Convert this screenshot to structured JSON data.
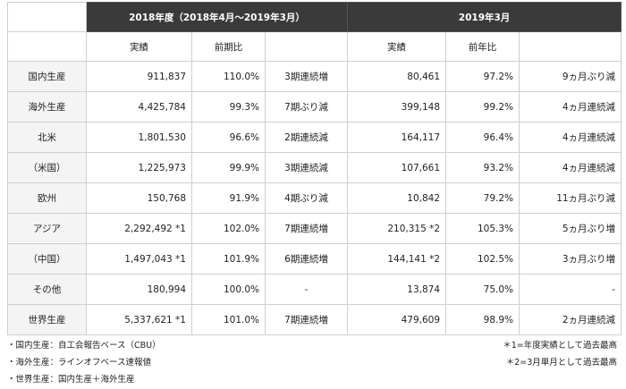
{
  "header": {
    "period1": "2018年度（2018年4月～2019年3月）",
    "period2": "2019年3月"
  },
  "subheader": {
    "c1": "実績",
    "c2": "前期比",
    "c3": "実績",
    "c4": "前年比"
  },
  "rows": [
    {
      "label": "国内生産",
      "v1": "911,837",
      "p1": "110.0%",
      "n1": "3期連続増",
      "v2": "80,461",
      "p2": "97.2%",
      "n2": "9ヵ月ぶり減"
    },
    {
      "label": "海外生産",
      "v1": "4,425,784",
      "p1": "99.3%",
      "n1": "7期ぶり減",
      "v2": "399,148",
      "p2": "99.2%",
      "n2": "4ヵ月連続減"
    },
    {
      "label": "北米",
      "v1": "1,801,530",
      "p1": "96.6%",
      "n1": "2期連続減",
      "v2": "164,117",
      "p2": "96.4%",
      "n2": "4ヵ月連続減"
    },
    {
      "label": "（米国）",
      "v1": "1,225,973",
      "p1": "99.9%",
      "n1": "3期連続減",
      "v2": "107,661",
      "p2": "93.2%",
      "n2": "4ヵ月連続減"
    },
    {
      "label": "欧州",
      "v1": "150,768",
      "p1": "91.9%",
      "n1": "4期ぶり減",
      "v2": "10,842",
      "p2": "79.2%",
      "n2": "11ヵ月ぶり減"
    },
    {
      "label": "アジア",
      "v1": "2,292,492 *1",
      "p1": "102.0%",
      "n1": "7期連続増",
      "v2": "210,315 *2",
      "p2": "105.3%",
      "n2": "5ヵ月ぶり増"
    },
    {
      "label": "（中国）",
      "v1": "1,497,043 *1",
      "p1": "101.9%",
      "n1": "6期連続増",
      "v2": "144,141 *2",
      "p2": "102.5%",
      "n2": "3ヵ月ぶり増"
    },
    {
      "label": "その他",
      "v1": "180,994",
      "p1": "100.0%",
      "n1": "-",
      "v2": "13,874",
      "p2": "75.0%",
      "n2": "-"
    },
    {
      "label": "世界生産",
      "v1": "5,337,621 *1",
      "p1": "101.0%",
      "n1": "7期連続増",
      "v2": "479,609",
      "p2": "98.9%",
      "n2": "2ヵ月連続減"
    }
  ],
  "notes": {
    "left": [
      "・国内生産：自工会報告ベース（CBU）",
      "・海外生産：ラインオフベース速報値",
      "・世界生産：国内生産＋海外生産"
    ],
    "right": [
      "＊1=年度実績として過去最高",
      "＊2=3月単月として過去最高"
    ]
  }
}
